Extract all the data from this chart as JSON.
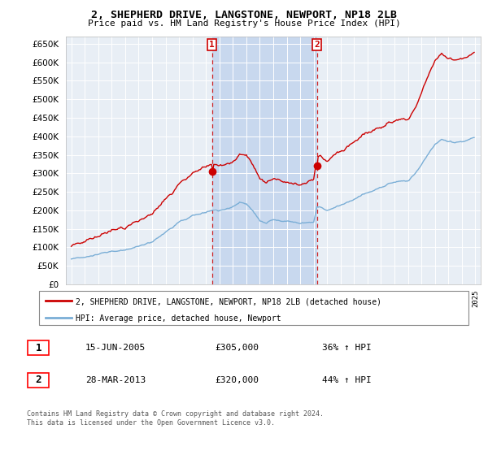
{
  "title": "2, SHEPHERD DRIVE, LANGSTONE, NEWPORT, NP18 2LB",
  "subtitle": "Price paid vs. HM Land Registry's House Price Index (HPI)",
  "legend_line1": "2, SHEPHERD DRIVE, LANGSTONE, NEWPORT, NP18 2LB (detached house)",
  "legend_line2": "HPI: Average price, detached house, Newport",
  "footnote": "Contains HM Land Registry data © Crown copyright and database right 2024.\nThis data is licensed under the Open Government Licence v3.0.",
  "table": [
    {
      "num": "1",
      "date": "15-JUN-2005",
      "price": "£305,000",
      "hpi": "36% ↑ HPI"
    },
    {
      "num": "2",
      "date": "28-MAR-2013",
      "price": "£320,000",
      "hpi": "44% ↑ HPI"
    }
  ],
  "hpi_color": "#7aaed6",
  "price_color": "#cc0000",
  "plot_bg": "#e8eef5",
  "shade_color": "#c8d8ee",
  "marker1_x": 2005.46,
  "marker1_y": 305000,
  "marker2_x": 2013.24,
  "marker2_y": 320000,
  "ylim": [
    0,
    670000
  ],
  "yticks": [
    0,
    50000,
    100000,
    150000,
    200000,
    250000,
    300000,
    350000,
    400000,
    450000,
    500000,
    550000,
    600000,
    650000
  ],
  "xlim_start": 1994.6,
  "xlim_end": 2025.4
}
